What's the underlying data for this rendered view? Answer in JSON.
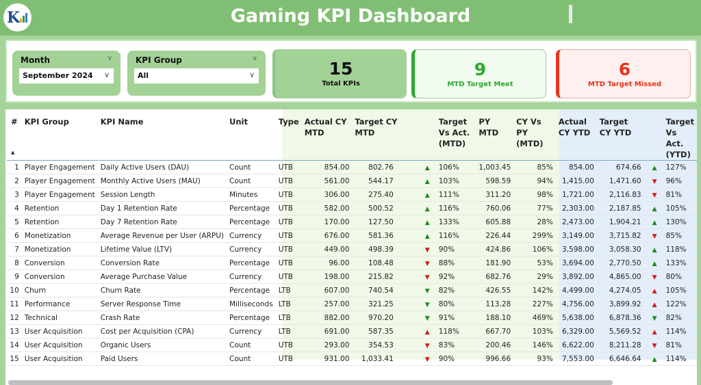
{
  "header": {
    "title": "Gaming KPI Dashboard",
    "logo_icon": "kpi-logo-icon"
  },
  "filters": {
    "month": {
      "label": "Month",
      "value": "September 2024"
    },
    "kpi_group": {
      "label": "KPI Group",
      "value": "All"
    }
  },
  "cards": {
    "total": {
      "value": "15",
      "label": "Total KPIs"
    },
    "meet": {
      "value": "9",
      "label": "MTD Target Meet",
      "color": "#2ea82e"
    },
    "missed": {
      "value": "6",
      "label": "MTD Target Missed",
      "color": "#e8341c"
    }
  },
  "table": {
    "columns": [
      "#",
      "KPI Group",
      "KPI Name",
      "Unit",
      "Type",
      "Actual CY MTD",
      "Target CY MTD",
      "Target Vs Act. (MTD)",
      "PY MTD",
      "CY Vs PY (MTD)",
      "Actual CY YTD",
      "Target CY YTD",
      "Target Vs Act. (YTD)"
    ],
    "rows": [
      [
        "1",
        "Player Engagement",
        "Daily Active Users (DAU)",
        "Count",
        "UTB",
        "854.00",
        "802.76",
        "up",
        "green",
        "106%",
        "1,003.45",
        "85%",
        "854.00",
        "674.66",
        "up",
        "green",
        "127%"
      ],
      [
        "2",
        "Player Engagement",
        "Monthly Active Users (MAU)",
        "Count",
        "UTB",
        "561.00",
        "544.17",
        "up",
        "green",
        "103%",
        "598.59",
        "94%",
        "1,415.00",
        "1,471.60",
        "down",
        "red",
        "96%"
      ],
      [
        "3",
        "Player Engagement",
        "Session Length",
        "Minutes",
        "UTB",
        "306.00",
        "275.40",
        "up",
        "green",
        "111%",
        "311.20",
        "98%",
        "1,721.00",
        "2,116.83",
        "down",
        "red",
        "81%"
      ],
      [
        "4",
        "Retention",
        "Day 1 Retention Rate",
        "Percentage",
        "UTB",
        "582.00",
        "500.52",
        "up",
        "green",
        "116%",
        "760.06",
        "77%",
        "2,303.00",
        "2,187.85",
        "up",
        "green",
        "105%"
      ],
      [
        "5",
        "Retention",
        "Day 7 Retention Rate",
        "Percentage",
        "UTB",
        "170.00",
        "127.50",
        "up",
        "green",
        "133%",
        "605.88",
        "28%",
        "2,473.00",
        "1,904.21",
        "up",
        "green",
        "130%"
      ],
      [
        "6",
        "Monetization",
        "Average Revenue per User (ARPU)",
        "Currency",
        "UTB",
        "676.00",
        "581.36",
        "up",
        "green",
        "116%",
        "226.44",
        "299%",
        "3,149.00",
        "3,715.82",
        "down",
        "red",
        "85%"
      ],
      [
        "7",
        "Monetization",
        "Lifetime Value (LTV)",
        "Currency",
        "UTB",
        "449.00",
        "498.39",
        "down",
        "red",
        "90%",
        "424.86",
        "106%",
        "3,598.00",
        "3,058.30",
        "up",
        "green",
        "118%"
      ],
      [
        "8",
        "Conversion",
        "Conversion Rate",
        "Percentage",
        "UTB",
        "96.00",
        "108.48",
        "down",
        "red",
        "88%",
        "181.90",
        "53%",
        "3,694.00",
        "2,770.50",
        "up",
        "green",
        "133%"
      ],
      [
        "9",
        "Conversion",
        "Average Purchase Value",
        "Currency",
        "UTB",
        "198.00",
        "215.82",
        "down",
        "red",
        "92%",
        "682.76",
        "29%",
        "3,892.00",
        "4,865.00",
        "down",
        "red",
        "80%"
      ],
      [
        "10",
        "Churn",
        "Churn Rate",
        "Percentage",
        "LTB",
        "607.00",
        "740.54",
        "down",
        "green",
        "82%",
        "426.55",
        "142%",
        "4,499.00",
        "4,274.05",
        "up",
        "red",
        "105%"
      ],
      [
        "11",
        "Performance",
        "Server Response Time",
        "Milliseconds",
        "LTB",
        "257.00",
        "321.25",
        "down",
        "green",
        "80%",
        "113.28",
        "227%",
        "4,756.00",
        "3,899.92",
        "up",
        "red",
        "122%"
      ],
      [
        "12",
        "Technical",
        "Crash Rate",
        "Percentage",
        "LTB",
        "882.00",
        "970.20",
        "down",
        "green",
        "91%",
        "188.10",
        "469%",
        "5,638.00",
        "6,878.36",
        "down",
        "green",
        "82%"
      ],
      [
        "13",
        "User Acquisition",
        "Cost per Acquisition (CPA)",
        "Currency",
        "LTB",
        "691.00",
        "587.35",
        "up",
        "red",
        "118%",
        "667.70",
        "103%",
        "6,329.00",
        "5,569.52",
        "up",
        "red",
        "114%"
      ],
      [
        "14",
        "User Acquisition",
        "Organic Users",
        "Count",
        "UTB",
        "293.00",
        "354.53",
        "down",
        "red",
        "83%",
        "200.46",
        "146%",
        "6,622.00",
        "8,211.28",
        "down",
        "red",
        "81%"
      ],
      [
        "15",
        "User Acquisition",
        "Paid Users",
        "Count",
        "UTB",
        "931.00",
        "1,033.41",
        "down",
        "red",
        "90%",
        "996.66",
        "93%",
        "7,553.00",
        "6,646.64",
        "up",
        "green",
        "114%"
      ]
    ]
  }
}
